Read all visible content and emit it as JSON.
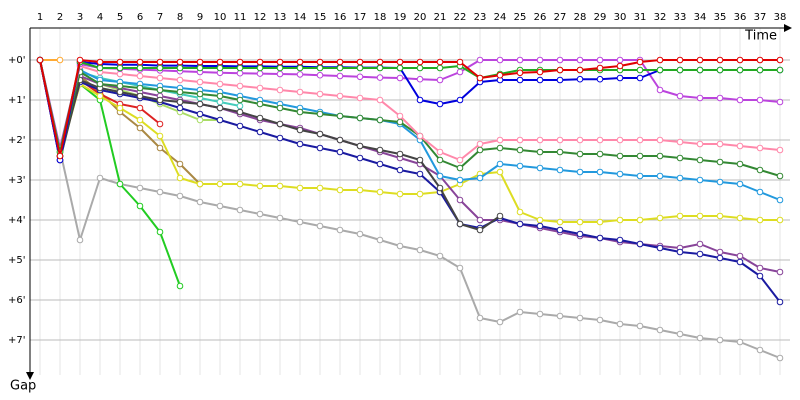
{
  "chart_data": {
    "type": "line",
    "x_label": "Time",
    "y_label": "Gap",
    "categories": [
      "1",
      "2",
      "3",
      "4",
      "5",
      "6",
      "7",
      "8",
      "9",
      "10",
      "11",
      "12",
      "13",
      "14",
      "15",
      "16",
      "17",
      "18",
      "19",
      "20",
      "21",
      "22",
      "23",
      "24",
      "25",
      "26",
      "27",
      "28",
      "29",
      "30",
      "31",
      "32",
      "33",
      "34",
      "35",
      "36",
      "37",
      "38"
    ],
    "ylim": [
      -1,
      8
    ],
    "yticks": [
      {
        "value": 0,
        "label": "+0'"
      },
      {
        "value": 1,
        "label": "+1'"
      },
      {
        "value": 2,
        "label": "+2'"
      },
      {
        "value": 3,
        "label": "+3'"
      },
      {
        "value": 4,
        "label": "+4'"
      },
      {
        "value": 5,
        "label": "+5'"
      },
      {
        "value": 6,
        "label": "+6'"
      },
      {
        "value": 7,
        "label": "+7'"
      }
    ],
    "grid": true,
    "series": [
      {
        "color": "#aaaaaa",
        "values": [
          0,
          2.25,
          4.5,
          2.95,
          3.1,
          3.2,
          3.3,
          3.4,
          3.55,
          3.65,
          3.75,
          3.85,
          3.95,
          4.05,
          4.15,
          4.25,
          4.35,
          4.5,
          4.65,
          4.75,
          4.9,
          5.2,
          6.45,
          6.55,
          6.3,
          6.35,
          6.4,
          6.45,
          6.5,
          6.6,
          6.65,
          6.75,
          6.85,
          6.95,
          7.0,
          7.05,
          7.25,
          7.45
        ]
      },
      {
        "color": "#22cc22",
        "values": [
          0,
          2.3,
          0.6,
          1.0,
          3.1,
          3.65,
          4.3,
          5.65,
          null,
          null,
          null,
          null,
          null,
          null,
          null,
          null,
          null,
          null,
          null,
          null,
          null,
          null,
          null,
          null,
          null,
          null,
          null,
          null,
          null,
          null,
          null,
          null,
          null,
          null,
          null,
          null,
          null,
          null
        ]
      },
      {
        "color": "#aa8844",
        "values": [
          0,
          2.4,
          0.4,
          0.8,
          1.3,
          1.7,
          2.2,
          2.6,
          3.1,
          null,
          null,
          null,
          null,
          null,
          null,
          null,
          null,
          null,
          null,
          null,
          null,
          null,
          null,
          null,
          null,
          null,
          null,
          null,
          null,
          null,
          null,
          null,
          null,
          null,
          null,
          null,
          null,
          null
        ]
      },
      {
        "color": "#aadd66",
        "values": [
          0,
          2.3,
          0.4,
          0.6,
          0.75,
          0.9,
          1.1,
          1.3,
          1.5,
          1.5,
          null,
          null,
          null,
          null,
          null,
          null,
          null,
          null,
          null,
          null,
          null,
          null,
          null,
          null,
          null,
          null,
          null,
          null,
          null,
          null,
          null,
          null,
          null,
          null,
          null,
          null,
          null,
          null
        ]
      },
      {
        "color": "#44ccbb",
        "values": [
          0,
          2.3,
          0.3,
          0.45,
          0.55,
          0.65,
          0.75,
          0.85,
          0.95,
          1.05,
          1.15,
          null,
          null,
          null,
          null,
          null,
          null,
          null,
          null,
          null,
          null,
          null,
          null,
          null,
          null,
          null,
          null,
          null,
          null,
          null,
          null,
          null,
          null,
          null,
          null,
          null,
          null,
          null
        ]
      },
      {
        "color": "#dd2222",
        "values": [
          0,
          2.4,
          0.5,
          0.85,
          1.1,
          1.2,
          1.6,
          null,
          null,
          null,
          null,
          null,
          null,
          null,
          null,
          null,
          null,
          null,
          null,
          null,
          null,
          null,
          null,
          null,
          null,
          null,
          null,
          null,
          null,
          null,
          null,
          null,
          null,
          null,
          null,
          null,
          null,
          null
        ]
      },
      {
        "color": "#ffaa33",
        "values": [
          0,
          0,
          null,
          null,
          null,
          null,
          null,
          null,
          null,
          null,
          null,
          null,
          null,
          null,
          null,
          null,
          null,
          null,
          null,
          null,
          null,
          null,
          null,
          null,
          null,
          null,
          null,
          null,
          null,
          null,
          null,
          null,
          null,
          null,
          null,
          null,
          null,
          null
        ]
      },
      {
        "color": "#dddd22",
        "values": [
          0,
          2.4,
          0.6,
          0.9,
          1.2,
          1.5,
          1.9,
          2.95,
          3.1,
          3.1,
          3.1,
          3.15,
          3.15,
          3.2,
          3.2,
          3.25,
          3.25,
          3.3,
          3.35,
          3.35,
          3.3,
          3.1,
          2.85,
          2.8,
          3.8,
          4.0,
          4.05,
          4.05,
          4.05,
          4.0,
          4.0,
          3.95,
          3.9,
          3.9,
          3.9,
          3.95,
          4.0,
          4.0
        ]
      },
      {
        "color": "#884499",
        "values": [
          0,
          2.5,
          0.4,
          0.6,
          0.7,
          0.8,
          0.9,
          1.0,
          1.1,
          1.2,
          1.35,
          1.5,
          1.6,
          1.7,
          1.85,
          2.0,
          2.15,
          2.3,
          2.45,
          2.6,
          2.9,
          3.5,
          4.0,
          4.0,
          4.1,
          4.2,
          4.3,
          4.4,
          4.45,
          4.55,
          4.6,
          4.65,
          4.7,
          4.6,
          4.8,
          4.9,
          5.2,
          5.3
        ]
      },
      {
        "color": "#1a1aa0",
        "values": [
          0,
          2.4,
          0.55,
          0.75,
          0.85,
          0.95,
          1.05,
          1.2,
          1.35,
          1.5,
          1.65,
          1.8,
          1.95,
          2.1,
          2.2,
          2.3,
          2.45,
          2.6,
          2.75,
          2.85,
          3.3,
          4.1,
          4.2,
          3.95,
          4.1,
          4.15,
          4.25,
          4.35,
          4.45,
          4.5,
          4.6,
          4.7,
          4.8,
          4.85,
          4.95,
          5.05,
          5.4,
          6.05
        ]
      },
      {
        "color": "#444444",
        "values": [
          0,
          2.5,
          0.5,
          0.7,
          0.8,
          0.9,
          1.0,
          1.05,
          1.1,
          1.2,
          1.3,
          1.45,
          1.6,
          1.75,
          1.85,
          2.0,
          2.15,
          2.25,
          2.35,
          2.5,
          3.2,
          4.1,
          4.25,
          3.9,
          null,
          null,
          null,
          null,
          null,
          null,
          null,
          null,
          null,
          null,
          null,
          null,
          null,
          null
        ]
      },
      {
        "color": "#2299dd",
        "values": [
          0,
          2.4,
          0.25,
          0.5,
          0.55,
          0.6,
          0.65,
          0.7,
          0.75,
          0.8,
          0.9,
          1.0,
          1.1,
          1.2,
          1.3,
          1.4,
          1.45,
          1.5,
          1.6,
          2.0,
          2.9,
          3.0,
          2.95,
          2.6,
          2.65,
          2.7,
          2.75,
          2.8,
          2.8,
          2.85,
          2.9,
          2.9,
          2.95,
          3.0,
          3.05,
          3.1,
          3.3,
          3.5
        ]
      },
      {
        "color": "#338833",
        "values": [
          0,
          2.4,
          0.3,
          0.6,
          0.65,
          0.7,
          0.75,
          0.8,
          0.85,
          0.9,
          1.0,
          1.1,
          1.2,
          1.3,
          1.35,
          1.4,
          1.45,
          1.5,
          1.55,
          1.9,
          2.5,
          2.7,
          2.25,
          2.2,
          2.25,
          2.3,
          2.3,
          2.35,
          2.35,
          2.4,
          2.4,
          2.4,
          2.45,
          2.5,
          2.55,
          2.6,
          2.75,
          2.9
        ]
      },
      {
        "color": "#ff88aa",
        "values": [
          0,
          2.3,
          0.15,
          0.3,
          0.35,
          0.4,
          0.45,
          0.5,
          0.55,
          0.6,
          0.65,
          0.7,
          0.75,
          0.8,
          0.85,
          0.9,
          0.95,
          1.0,
          1.4,
          1.9,
          2.3,
          2.5,
          2.1,
          2.0,
          2.0,
          2.0,
          2.0,
          2.0,
          2.0,
          2.0,
          2.0,
          2.0,
          2.05,
          2.1,
          2.1,
          2.15,
          2.2,
          2.25
        ]
      },
      {
        "color": "#bb44dd",
        "values": [
          0,
          2.2,
          0.1,
          0.2,
          0.22,
          0.24,
          0.26,
          0.28,
          0.3,
          0.32,
          0.33,
          0.34,
          0.35,
          0.36,
          0.38,
          0.4,
          0.42,
          0.44,
          0.45,
          0.48,
          0.5,
          0.3,
          0,
          0,
          0,
          0,
          0,
          0,
          0,
          0,
          0,
          0.75,
          0.9,
          0.95,
          0.95,
          1.0,
          1.0,
          1.05
        ]
      },
      {
        "color": "#0000dd",
        "values": [
          0,
          2.5,
          0.05,
          0.1,
          0.12,
          0.12,
          0.14,
          0.14,
          0.15,
          0.15,
          0.16,
          0.16,
          0.17,
          0.17,
          0.18,
          0.18,
          0.19,
          0.19,
          0.2,
          1.0,
          1.1,
          1.0,
          0.55,
          0.5,
          0.5,
          0.5,
          0.5,
          0.48,
          0.48,
          0.45,
          0.45,
          0.25,
          0.25,
          0.25,
          0.25,
          0.25,
          0.25,
          0.25
        ]
      },
      {
        "color": "#22aa22",
        "values": [
          0,
          2.3,
          0.05,
          0.2,
          0.2,
          0.2,
          0.2,
          0.2,
          0.2,
          0.2,
          0.2,
          0.2,
          0.2,
          0.2,
          0.2,
          0.2,
          0.2,
          0.2,
          0.2,
          0.2,
          0.2,
          0.15,
          0.45,
          0.35,
          0.25,
          0.25,
          0.25,
          0.25,
          0.25,
          0.25,
          0.25,
          0.25,
          0.25,
          0.25,
          0.25,
          0.25,
          0.25,
          0.25
        ]
      },
      {
        "color": "#e00000",
        "values": [
          0,
          2.4,
          0,
          0.05,
          0.05,
          0.05,
          0.05,
          0.05,
          0.05,
          0.05,
          0.05,
          0.05,
          0.05,
          0.05,
          0.05,
          0.05,
          0.05,
          0.05,
          0.05,
          0.05,
          0.05,
          0.05,
          0.45,
          0.38,
          0.32,
          0.3,
          0.25,
          0.25,
          0.2,
          0.15,
          0.05,
          0,
          0,
          0,
          0,
          0,
          0,
          0
        ]
      }
    ]
  }
}
